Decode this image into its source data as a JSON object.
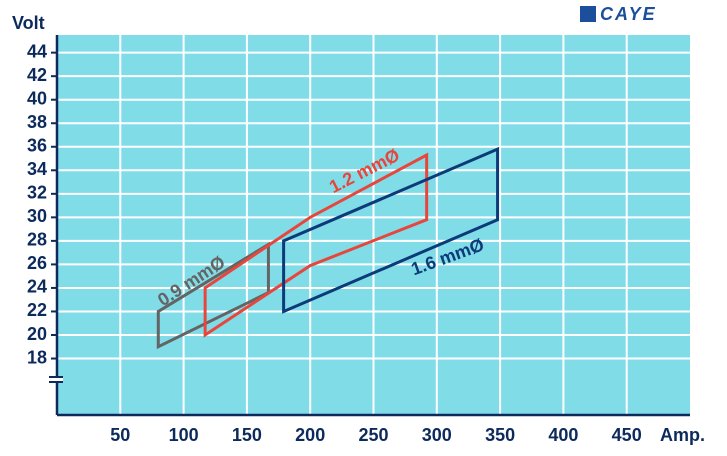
{
  "chart_data": {
    "type": "polygon",
    "logo": "CAYE",
    "y_label": "Volt",
    "x_label": "Amp.",
    "xlim": [
      0,
      500
    ],
    "ylim": [
      13.2,
      45.5
    ],
    "xticks": [
      50,
      100,
      150,
      200,
      250,
      300,
      350,
      400,
      450
    ],
    "yticks": [
      18,
      20,
      22,
      24,
      26,
      28,
      30,
      32,
      34,
      36,
      38,
      40,
      42,
      44
    ],
    "grid": true,
    "background": "#80dde8",
    "series": [
      {
        "name": "0.9 mmØ",
        "color": "#646464",
        "x": [
          80,
          80,
          167,
          167
        ],
        "values": [
          19,
          22,
          27.7,
          23.6
        ]
      },
      {
        "name": "1.2 mmØ",
        "color": "#e8453c",
        "x": [
          117,
          117,
          200,
          292,
          292,
          200
        ],
        "values": [
          20,
          24,
          30,
          35.3,
          29.8,
          25.9
        ]
      },
      {
        "name": "1.6 mmØ",
        "color": "#0d3b7a",
        "x": [
          179,
          179,
          348,
          348
        ],
        "values": [
          22,
          28,
          35.8,
          29.8
        ]
      }
    ]
  }
}
